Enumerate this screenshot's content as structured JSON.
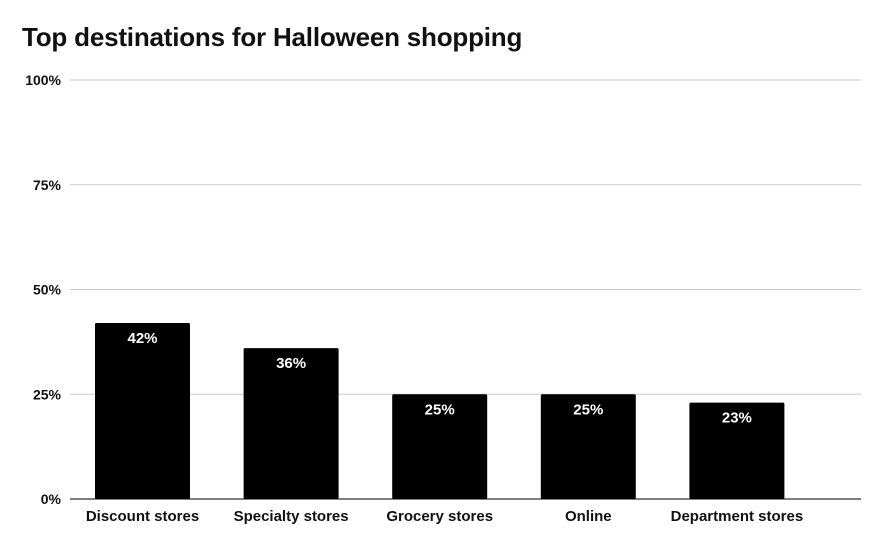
{
  "chart_data": {
    "type": "bar",
    "title": "Top destinations for Halloween shopping",
    "xlabel": "",
    "ylabel": "",
    "categories": [
      "Discount stores",
      "Specialty stores",
      "Grocery stores",
      "Online",
      "Department stores"
    ],
    "values": [
      42,
      36,
      25,
      25,
      23
    ],
    "data_labels": [
      "42%",
      "36%",
      "25%",
      "25%",
      "23%"
    ],
    "ylim": [
      0,
      100
    ],
    "yticks": [
      0,
      25,
      50,
      75,
      100
    ],
    "ytick_labels": [
      "0%",
      "25%",
      "50%",
      "75%",
      "100%"
    ],
    "grid": true,
    "legend": "none",
    "colors": {
      "bar": "#000000",
      "bar_label": "#ffffff",
      "grid": "#cccccc",
      "axis": "#333333",
      "text": "#111111"
    }
  }
}
